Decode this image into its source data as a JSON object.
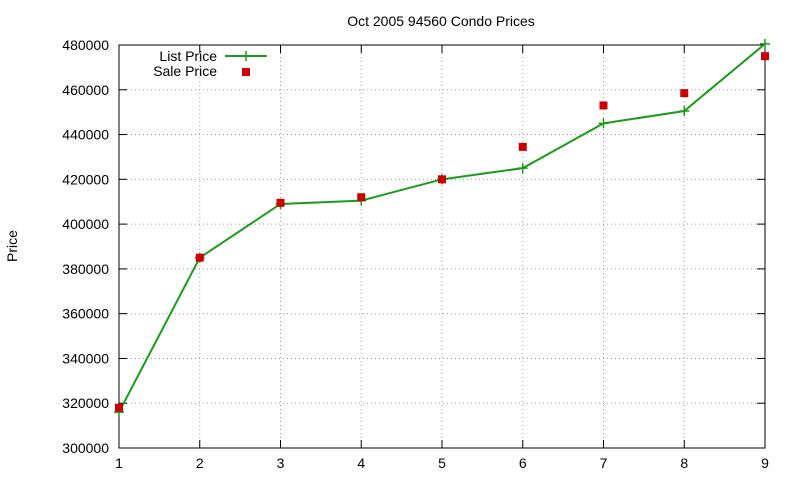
{
  "chart_data": {
    "type": "line",
    "title": "Oct 2005 94560 Condo Prices",
    "xlabel": "",
    "ylabel": "Price",
    "x": [
      1,
      2,
      3,
      4,
      5,
      6,
      7,
      8,
      9
    ],
    "xlim": [
      1,
      9
    ],
    "ylim": [
      300000,
      480000
    ],
    "xticks": [
      "1",
      "2",
      "3",
      "4",
      "5",
      "6",
      "7",
      "8",
      "9"
    ],
    "yticks": [
      "300000",
      "320000",
      "340000",
      "360000",
      "380000",
      "400000",
      "420000",
      "440000",
      "460000",
      "480000"
    ],
    "grid": true,
    "legend_position": "top-left",
    "series": [
      {
        "name": "List Price",
        "style": "linespoints",
        "marker": "plus",
        "color": "#1a9c1a",
        "values": [
          316000,
          385000,
          409000,
          410500,
          420000,
          425000,
          445000,
          450500,
          480500
        ]
      },
      {
        "name": "Sale Price",
        "style": "points",
        "marker": "square",
        "color": "#cc0000",
        "values": [
          318000,
          385000,
          409500,
          412000,
          420000,
          434500,
          453000,
          458500,
          475000
        ]
      }
    ]
  }
}
